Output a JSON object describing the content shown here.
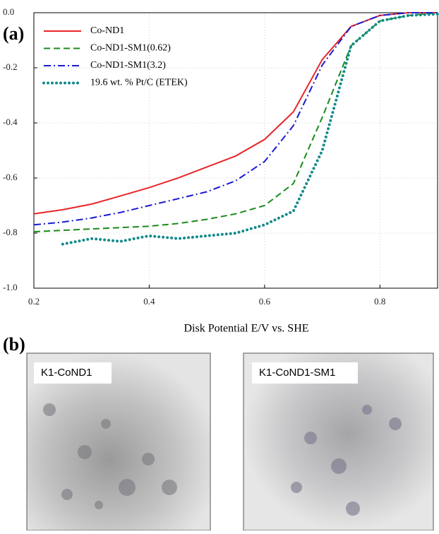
{
  "chart_data": {
    "type": "line",
    "panel_label": "(a)",
    "x_label": "Disk Potential E/V vs. SHE",
    "x": [
      0.2,
      0.25,
      0.3,
      0.35,
      0.4,
      0.45,
      0.5,
      0.55,
      0.6,
      0.65,
      0.7,
      0.75,
      0.8,
      0.85,
      0.9
    ],
    "series": [
      {
        "name": "Co-ND1",
        "color": "#e8262a",
        "style": "solid",
        "values": [
          -0.73,
          -0.715,
          -0.695,
          -0.665,
          -0.635,
          -0.6,
          -0.56,
          -0.52,
          -0.46,
          -0.36,
          -0.17,
          -0.05,
          -0.01,
          0,
          0
        ]
      },
      {
        "name": "Co-ND1-SM1(0.62)",
        "color": "#1a8a1a",
        "style": "dashed",
        "values": [
          -0.795,
          -0.79,
          -0.785,
          -0.78,
          -0.775,
          -0.765,
          -0.75,
          -0.73,
          -0.7,
          -0.62,
          -0.38,
          -0.12,
          -0.03,
          -0.01,
          0
        ]
      },
      {
        "name": "Co-ND1-SM1(3.2)",
        "color": "#1a1ad0",
        "style": "dashdot",
        "values": [
          -0.77,
          -0.76,
          -0.745,
          -0.725,
          -0.7,
          -0.675,
          -0.65,
          -0.61,
          -0.54,
          -0.41,
          -0.19,
          -0.05,
          -0.01,
          0,
          0
        ]
      },
      {
        "name": "19.6 wt. % Pt/C (ETEK)",
        "color": "#138a8a",
        "style": "dotted",
        "values": [
          null,
          -0.84,
          -0.82,
          -0.83,
          -0.81,
          -0.82,
          -0.81,
          -0.8,
          -0.77,
          -0.72,
          -0.5,
          -0.12,
          -0.03,
          -0.01,
          -0.005
        ]
      }
    ],
    "xlim": [
      0.2,
      0.9
    ],
    "ylim": [
      -1,
      0
    ],
    "xticks": [
      0.2,
      0.4,
      0.6,
      0.8
    ],
    "yticks": [
      {
        "value": 0,
        "label": "0.0"
      },
      -0.2,
      -0.4,
      -0.6,
      -0.8,
      {
        "value": -1,
        "label": "-1.0"
      }
    ],
    "grid": true,
    "legend": "upper left"
  },
  "panel_b": {
    "label": "(b)",
    "images": [
      {
        "label": "K1-CoND1"
      },
      {
        "label": "K1-CoND1-SM1"
      }
    ]
  }
}
